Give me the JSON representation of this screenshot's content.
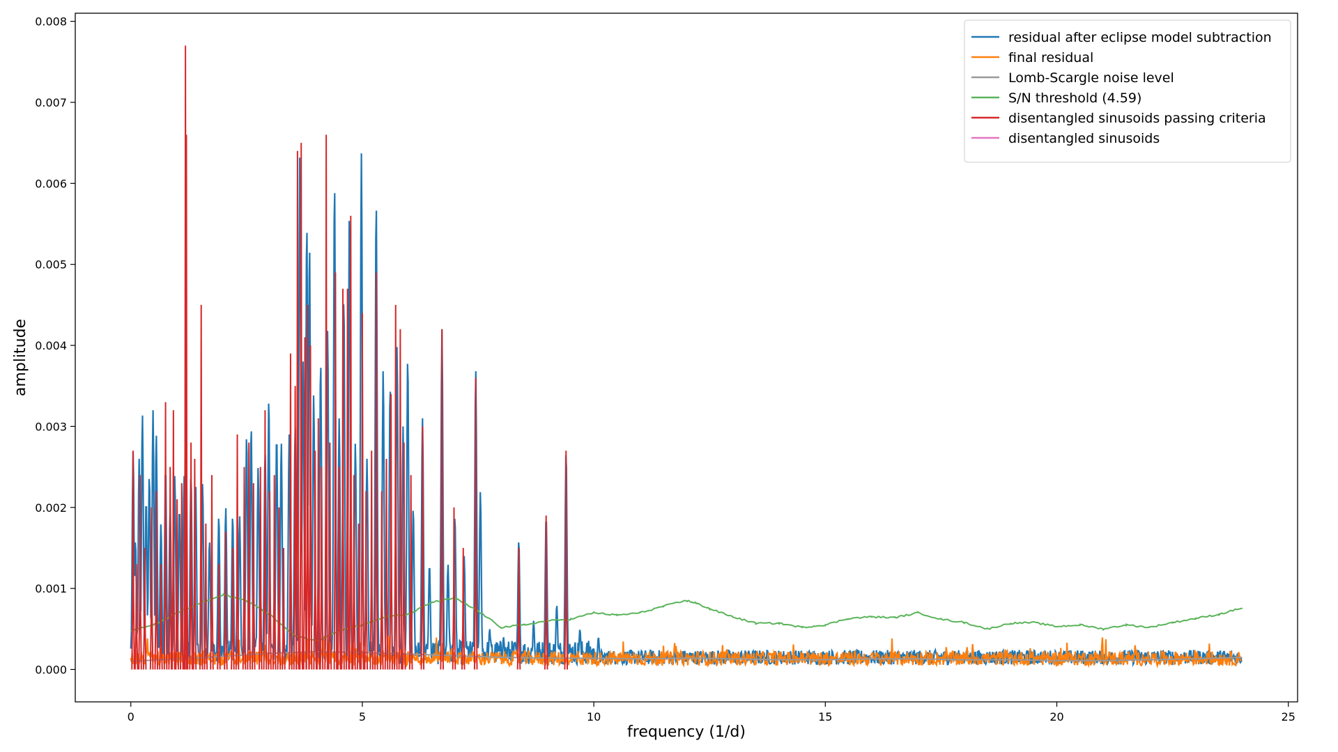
{
  "chart_data": {
    "type": "line",
    "xlabel": "frequency (1/d)",
    "ylabel": "amplitude",
    "xlim": [
      -1.2,
      25.2
    ],
    "ylim": [
      -0.0004,
      0.0081
    ],
    "xticks": [
      0,
      5,
      10,
      15,
      20,
      25
    ],
    "xtick_labels": [
      "0",
      "5",
      "10",
      "15",
      "20",
      "25"
    ],
    "yticks": [
      0.0,
      0.001,
      0.002,
      0.003,
      0.004,
      0.005,
      0.006,
      0.007,
      0.008
    ],
    "ytick_labels": [
      "0.000",
      "0.001",
      "0.002",
      "0.003",
      "0.004",
      "0.005",
      "0.006",
      "0.007",
      "0.008"
    ],
    "grid": false,
    "legend_position": "top-right",
    "series": [
      {
        "name": "residual after eclipse model subtraction",
        "color": "#1f77b4",
        "kind": "line",
        "peaks": [
          [
            0.05,
            0.0027
          ],
          [
            0.1,
            0.0016
          ],
          [
            0.18,
            0.0026
          ],
          [
            0.25,
            0.00315
          ],
          [
            0.33,
            0.0021
          ],
          [
            0.4,
            0.0024
          ],
          [
            0.48,
            0.0032
          ],
          [
            0.55,
            0.0029
          ],
          [
            0.65,
            0.0018
          ],
          [
            0.75,
            0.0025
          ],
          [
            0.85,
            0.002
          ],
          [
            0.95,
            0.0024
          ],
          [
            1.05,
            0.002
          ],
          [
            1.15,
            0.0024
          ],
          [
            1.3,
            0.0024
          ],
          [
            1.4,
            0.0023
          ],
          [
            1.55,
            0.0023
          ],
          [
            1.7,
            0.0016
          ],
          [
            1.9,
            0.0019
          ],
          [
            2.05,
            0.002
          ],
          [
            2.2,
            0.0019
          ],
          [
            2.35,
            0.0019
          ],
          [
            2.5,
            0.0029
          ],
          [
            2.6,
            0.003
          ],
          [
            2.75,
            0.0025
          ],
          [
            2.9,
            0.0027
          ],
          [
            2.98,
            0.00335
          ],
          [
            3.15,
            0.0029
          ],
          [
            3.25,
            0.0028
          ],
          [
            3.42,
            0.0029
          ],
          [
            3.55,
            0.003
          ],
          [
            3.65,
            0.00635
          ],
          [
            3.72,
            0.0038
          ],
          [
            3.8,
            0.0055
          ],
          [
            3.86,
            0.00525
          ],
          [
            3.95,
            0.0034
          ],
          [
            4.1,
            0.0038
          ],
          [
            4.25,
            0.0042
          ],
          [
            4.4,
            0.006
          ],
          [
            4.5,
            0.0031
          ],
          [
            4.6,
            0.0046
          ],
          [
            4.72,
            0.00565
          ],
          [
            4.85,
            0.0028
          ],
          [
            4.98,
            0.00637
          ],
          [
            5.1,
            0.0026
          ],
          [
            5.3,
            0.00578
          ],
          [
            5.45,
            0.0037
          ],
          [
            5.6,
            0.0035
          ],
          [
            5.75,
            0.004
          ],
          [
            5.88,
            0.003
          ],
          [
            5.98,
            0.00385
          ],
          [
            6.1,
            0.002
          ],
          [
            6.3,
            0.0031
          ],
          [
            6.45,
            0.0013
          ],
          [
            6.72,
            0.0042
          ],
          [
            6.85,
            0.0013
          ],
          [
            7.0,
            0.0019
          ],
          [
            7.2,
            0.0014
          ],
          [
            7.45,
            0.0037
          ],
          [
            7.55,
            0.0022
          ],
          [
            7.75,
            0.0005
          ],
          [
            8.05,
            0.0004
          ],
          [
            8.38,
            0.0016
          ],
          [
            8.7,
            0.0006
          ],
          [
            8.97,
            0.0019
          ],
          [
            9.2,
            0.0008
          ],
          [
            9.4,
            0.0027
          ],
          [
            9.7,
            0.0005
          ],
          [
            10.1,
            0.0004
          ]
        ]
      },
      {
        "name": "final residual",
        "color": "#ff7f0e",
        "kind": "line",
        "level": 0.00016
      },
      {
        "name": "Lomb-Scargle noise level",
        "color": "#999999",
        "kind": "line",
        "x": [
          0,
          1,
          2,
          3,
          4,
          5,
          6,
          7,
          8,
          9,
          10,
          11,
          12,
          13,
          14,
          15,
          16,
          17,
          18,
          19,
          20,
          21,
          22,
          23,
          24
        ],
        "y": [
          0.0001,
          0.00013,
          0.00016,
          0.0002,
          0.00022,
          0.00021,
          0.00019,
          0.00017,
          0.00015,
          0.00014,
          0.00014,
          0.00013,
          0.00014,
          0.00013,
          0.00012,
          0.00012,
          0.00013,
          0.00013,
          0.00012,
          0.00012,
          0.00011,
          0.00011,
          0.00012,
          0.00013,
          0.00015
        ]
      },
      {
        "name": "S/N threshold (4.59)",
        "color": "#5ab45a",
        "kind": "line",
        "x": [
          0,
          0.5,
          1,
          1.5,
          2,
          2.5,
          3,
          3.5,
          4,
          4.5,
          5,
          5.5,
          6,
          6.5,
          7,
          7.5,
          8,
          8.5,
          9,
          9.5,
          10,
          10.5,
          11,
          11.5,
          12,
          12.2,
          12.5,
          13,
          13.5,
          14,
          14.5,
          15,
          15.5,
          16,
          16.5,
          17,
          17.5,
          18,
          18.5,
          19,
          19.5,
          20,
          20.5,
          21,
          21.5,
          22,
          22.5,
          23,
          23.5,
          24
        ],
        "y": [
          0.00048,
          0.00055,
          0.0007,
          0.00082,
          0.00092,
          0.00085,
          0.00068,
          0.00043,
          0.00035,
          0.00048,
          0.00055,
          0.00065,
          0.00068,
          0.00083,
          0.00088,
          0.00072,
          0.00052,
          0.00055,
          0.0006,
          0.00062,
          0.0007,
          0.00067,
          0.0007,
          0.00078,
          0.00085,
          0.00082,
          0.00075,
          0.00065,
          0.00057,
          0.00057,
          0.00052,
          0.00055,
          0.00063,
          0.00065,
          0.00064,
          0.0007,
          0.00062,
          0.00058,
          0.0005,
          0.00057,
          0.00058,
          0.00053,
          0.00055,
          0.0005,
          0.00055,
          0.00052,
          0.00058,
          0.00063,
          0.00068,
          0.00076
        ]
      },
      {
        "name": "disentangled sinusoids passing criteria",
        "color": "#d62728",
        "kind": "vlines",
        "x": [
          0.05,
          0.12,
          0.2,
          0.3,
          0.45,
          0.55,
          0.65,
          0.75,
          0.85,
          0.92,
          1.0,
          1.1,
          1.18,
          1.2,
          1.3,
          1.38,
          1.52,
          1.62,
          1.75,
          1.9,
          2.05,
          2.2,
          2.3,
          2.45,
          2.55,
          2.65,
          2.8,
          2.9,
          3.0,
          3.1,
          3.2,
          3.3,
          3.45,
          3.55,
          3.6,
          3.68,
          3.76,
          3.82,
          3.88,
          3.98,
          4.05,
          4.12,
          4.22,
          4.3,
          4.42,
          4.5,
          4.58,
          4.68,
          4.75,
          4.82,
          4.92,
          5.0,
          5.08,
          5.2,
          5.3,
          5.42,
          5.52,
          5.62,
          5.72,
          5.82,
          5.9,
          6.05,
          6.3,
          6.72,
          6.98,
          7.18,
          7.45,
          8.38,
          8.97,
          9.4
        ],
        "y": [
          0.0027,
          0.0013,
          0.0024,
          0.0015,
          0.002,
          0.0022,
          0.0013,
          0.0033,
          0.0025,
          0.0032,
          0.0021,
          0.0023,
          0.0077,
          0.0066,
          0.0028,
          0.0026,
          0.0045,
          0.0018,
          0.0024,
          0.0013,
          0.0017,
          0.0015,
          0.0029,
          0.0025,
          0.0028,
          0.0023,
          0.0025,
          0.0032,
          0.0022,
          0.0024,
          0.002,
          0.0015,
          0.0039,
          0.0035,
          0.0064,
          0.0065,
          0.0041,
          0.0045,
          0.004,
          0.0027,
          0.0031,
          0.0025,
          0.0066,
          0.0028,
          0.0049,
          0.0025,
          0.0047,
          0.0047,
          0.0056,
          0.0024,
          0.0018,
          0.0044,
          0.0022,
          0.0027,
          0.0049,
          0.0022,
          0.0026,
          0.0034,
          0.0045,
          0.0042,
          0.0028,
          0.0024,
          0.003,
          0.0042,
          0.002,
          0.0015,
          0.0036,
          0.0015,
          0.0019,
          0.0027
        ]
      },
      {
        "name": "disentangled sinusoids",
        "color": "#e377c2",
        "kind": "vlines",
        "x": [],
        "y": []
      }
    ]
  }
}
